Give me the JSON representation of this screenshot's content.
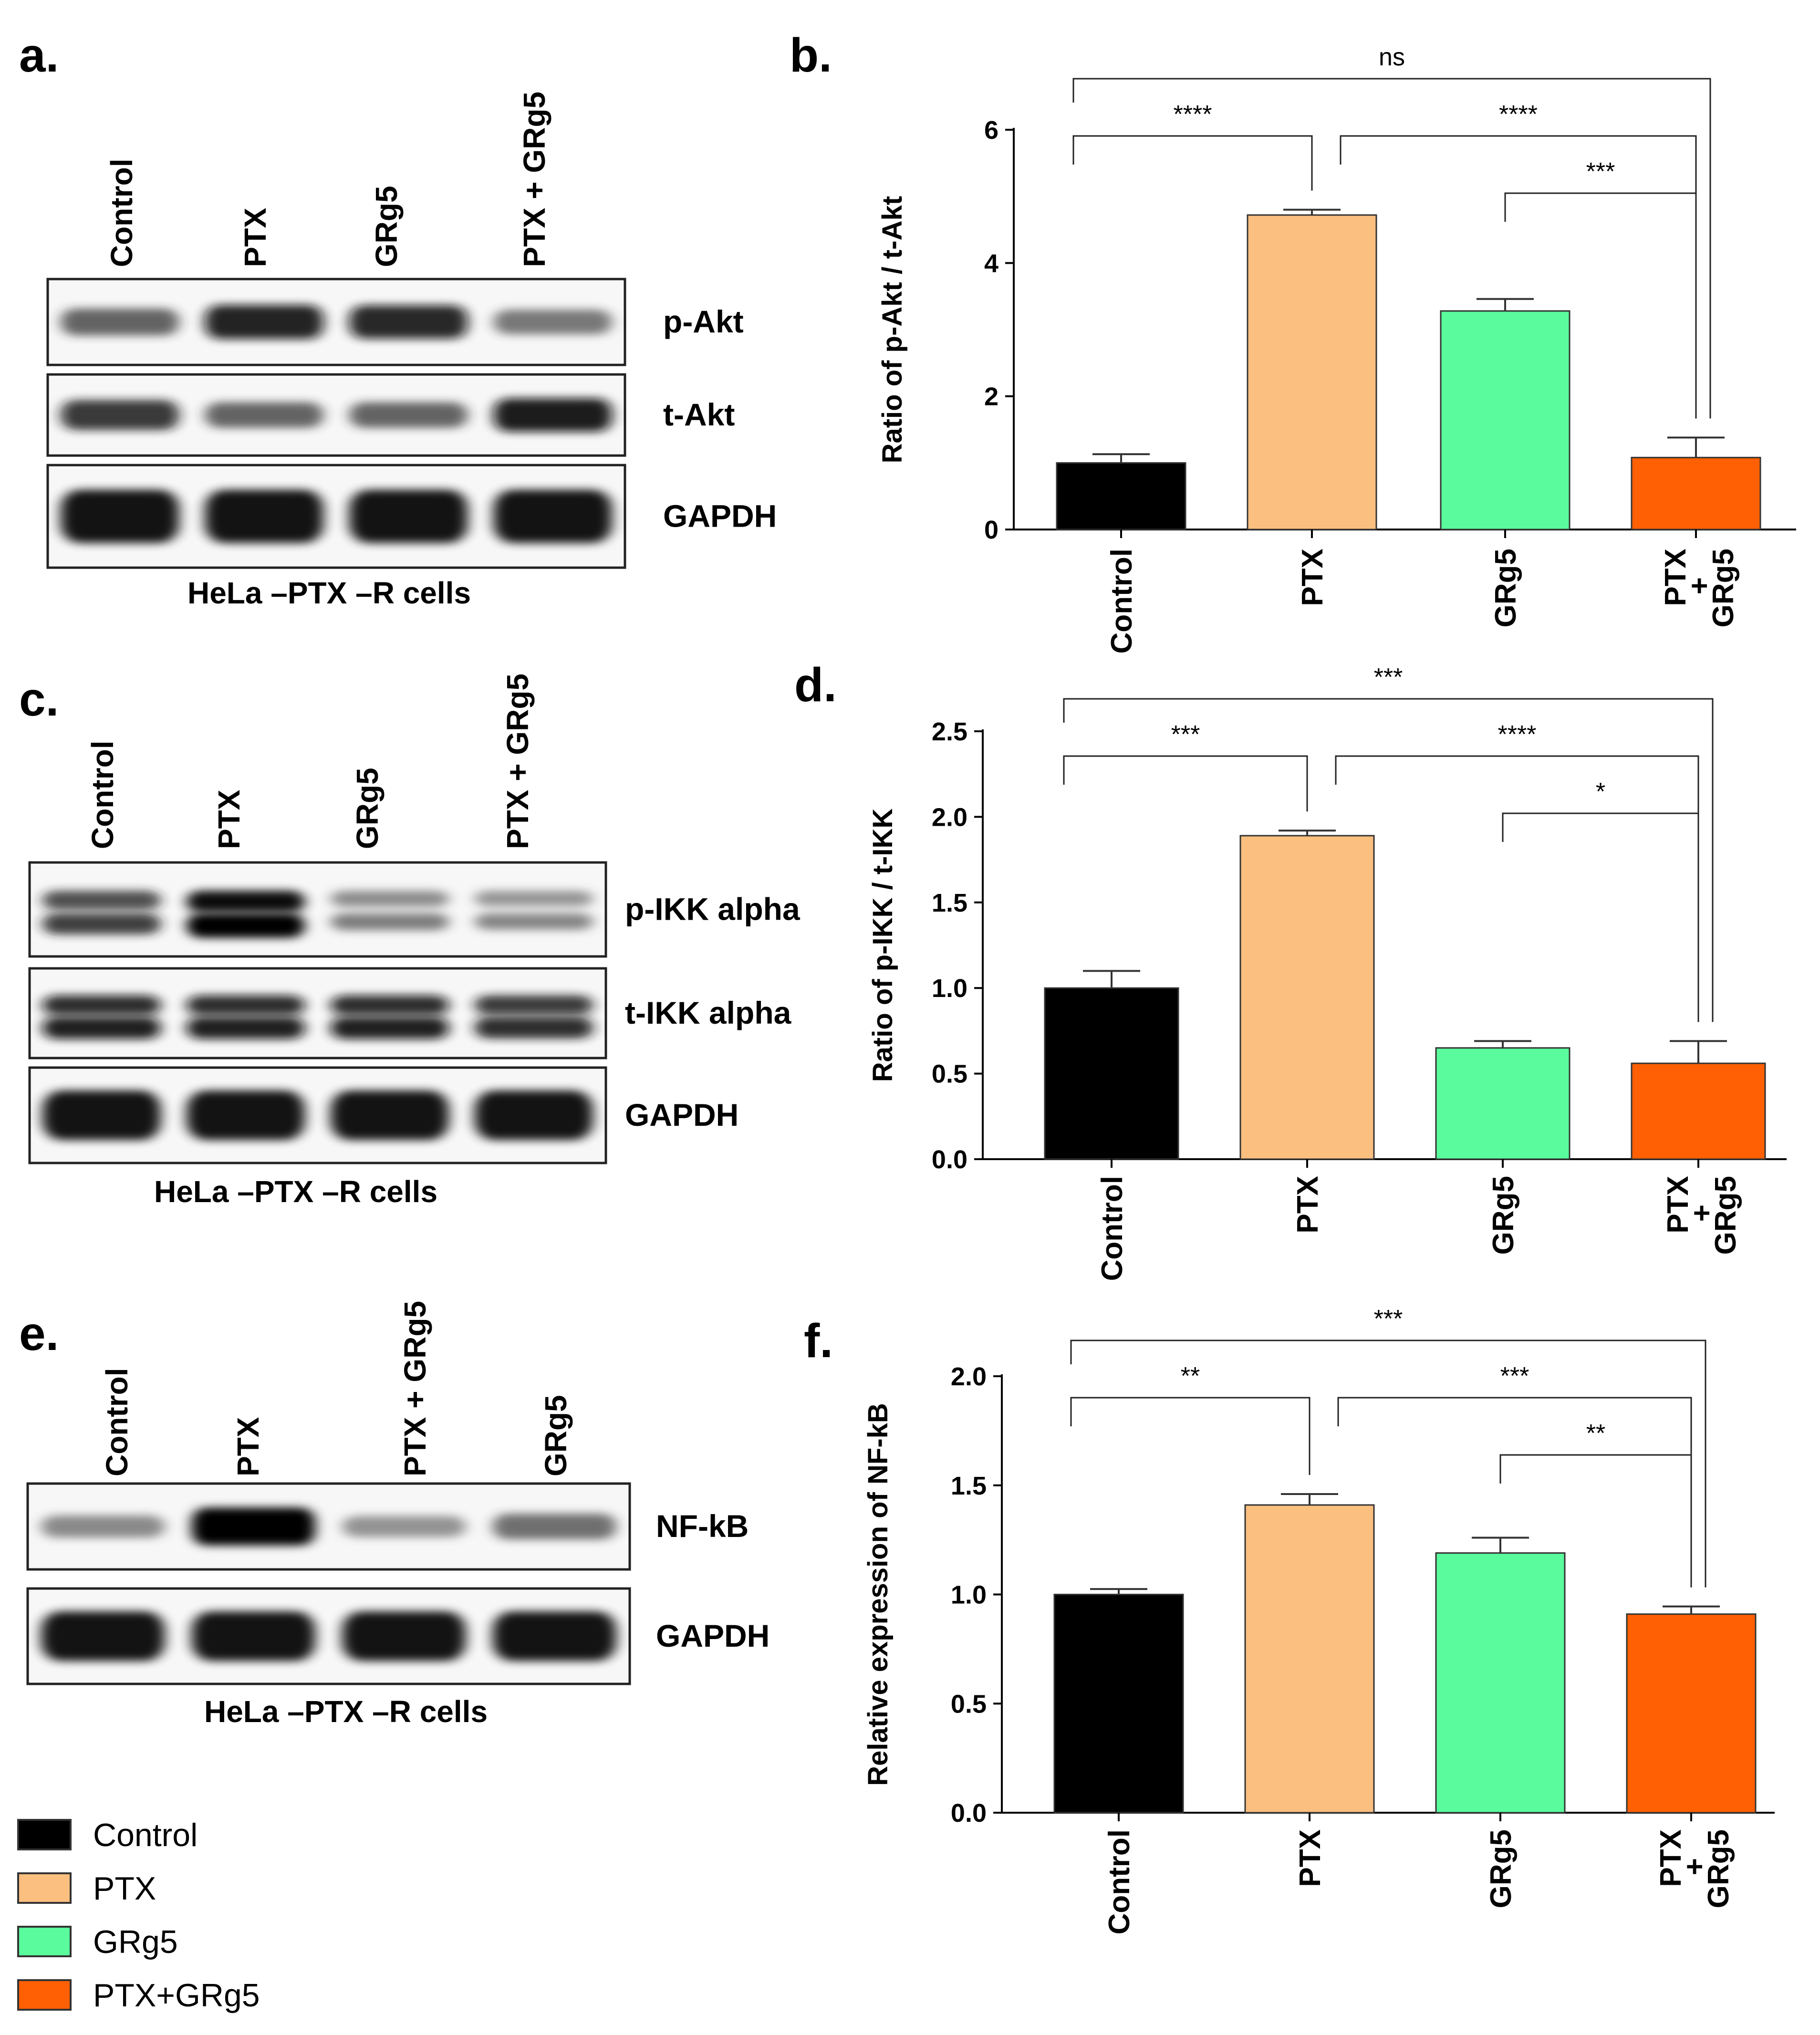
{
  "colors": {
    "Control": "#000000",
    "PTX": "#fbbf80",
    "GRg5": "#59fb9c",
    "PTX+GRg5": "#fe6003",
    "axis": "#000000"
  },
  "blots": [
    {
      "id": "a",
      "letter": "a.",
      "lanes": [
        "Control",
        "PTX",
        "GRg5",
        "PTX + GRg5"
      ],
      "rows": [
        {
          "label": "p-Akt",
          "intensity": [
            0.55,
            0.85,
            0.82,
            0.45
          ],
          "style": "single-band"
        },
        {
          "label": "t-Akt",
          "intensity": [
            0.75,
            0.55,
            0.55,
            0.9
          ],
          "style": "single-band"
        },
        {
          "label": "GAPDH",
          "intensity": [
            1.0,
            1.0,
            1.0,
            1.0
          ],
          "style": "thick-band"
        }
      ],
      "caption": "HeLa –PTX –R cells"
    },
    {
      "id": "c",
      "letter": "c.",
      "lanes": [
        "Control",
        "PTX",
        "GRg5",
        "PTX + GRg5"
      ],
      "rows": [
        {
          "label": "p-IKK alpha",
          "intensity": [
            0.7,
            1.0,
            0.35,
            0.3
          ],
          "style": "double-band"
        },
        {
          "label": "t-IKK alpha",
          "intensity": [
            0.85,
            0.85,
            0.85,
            0.8
          ],
          "style": "double-band"
        },
        {
          "label": "GAPDH",
          "intensity": [
            1.0,
            1.0,
            1.0,
            1.0
          ],
          "style": "thick-band"
        }
      ],
      "caption": "HeLa –PTX –R cells"
    },
    {
      "id": "e",
      "letter": "e.",
      "lanes": [
        "Control",
        "PTX",
        "PTX + GRg5",
        "GRg5"
      ],
      "rows": [
        {
          "label": "NF-kB",
          "intensity": [
            0.35,
            1.0,
            0.3,
            0.5
          ],
          "style": "single-band"
        },
        {
          "label": "GAPDH",
          "intensity": [
            0.95,
            0.9,
            0.95,
            0.95
          ],
          "style": "thick-band"
        }
      ],
      "caption": "HeLa –PTX –R cells"
    }
  ],
  "chart_data": [
    {
      "id": "b",
      "letter": "b.",
      "type": "bar",
      "categories": [
        "Control",
        "PTX",
        "GRg5",
        "PTX + GRg5"
      ],
      "values": [
        1.0,
        4.72,
        3.28,
        1.08
      ],
      "errors": [
        0.13,
        0.08,
        0.18,
        0.3
      ],
      "ylabel": "Ratio of p-Akt / t-Akt",
      "xlabel": "",
      "ylim": [
        0,
        6
      ],
      "yticks": [
        "0",
        "2",
        "4",
        "6"
      ],
      "significance": [
        {
          "from": 0,
          "to": 3,
          "label": "ns"
        },
        {
          "from": 0,
          "to": 1,
          "label": "****"
        },
        {
          "from": 1,
          "to": 3,
          "label": "****"
        },
        {
          "from": 2,
          "to": 3,
          "label": "***"
        }
      ]
    },
    {
      "id": "d",
      "letter": "d.",
      "type": "bar",
      "categories": [
        "Control",
        "PTX",
        "GRg5",
        "PTX + GRg5"
      ],
      "values": [
        1.0,
        1.89,
        0.65,
        0.56
      ],
      "errors": [
        0.1,
        0.03,
        0.04,
        0.13
      ],
      "ylabel": "Ratio of p-IKK / t-IKK",
      "xlabel": "",
      "ylim": [
        0,
        2.5
      ],
      "yticks": [
        "0.0",
        "0.5",
        "1.0",
        "1.5",
        "2.0",
        "2.5"
      ],
      "significance": [
        {
          "from": 0,
          "to": 3,
          "label": "***"
        },
        {
          "from": 0,
          "to": 1,
          "label": "***"
        },
        {
          "from": 1,
          "to": 3,
          "label": "****"
        },
        {
          "from": 2,
          "to": 3,
          "label": "*"
        }
      ]
    },
    {
      "id": "f",
      "letter": "f.",
      "type": "bar",
      "categories": [
        "Control",
        "PTX",
        "GRg5",
        "PTX + GRg5"
      ],
      "values": [
        1.0,
        1.41,
        1.19,
        0.91
      ],
      "errors": [
        0.025,
        0.05,
        0.07,
        0.035
      ],
      "ylabel": "Relative expression of NF-kB",
      "xlabel": "",
      "ylim": [
        0,
        2.0
      ],
      "yticks": [
        "0.0",
        "0.5",
        "1.0",
        "1.5",
        "2.0"
      ],
      "significance": [
        {
          "from": 0,
          "to": 3,
          "label": "***"
        },
        {
          "from": 0,
          "to": 1,
          "label": "**"
        },
        {
          "from": 1,
          "to": 3,
          "label": "***"
        },
        {
          "from": 2,
          "to": 3,
          "label": "**"
        }
      ]
    }
  ],
  "legend": {
    "placement": "bottom-left",
    "entries": [
      "Control",
      "PTX",
      "GRg5",
      "PTX+GRg5"
    ]
  }
}
